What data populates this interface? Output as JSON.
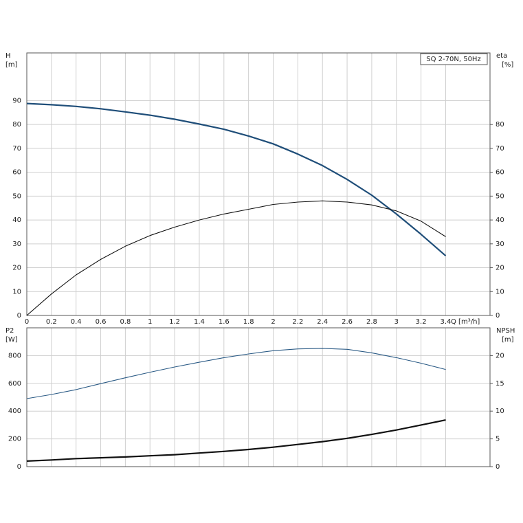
{
  "chart_data": [
    {
      "type": "line",
      "title": "SQ 2-70N, 50Hz",
      "ylabel": "H",
      "yunit": "[m]",
      "y2label": "eta",
      "y2unit": "[%]",
      "xlabel": "Q [m³/h]",
      "xlim": [
        0,
        3.76
      ],
      "xticks": [
        0,
        0.2,
        0.4,
        0.6,
        0.8,
        1.0,
        1.2,
        1.4,
        1.6,
        1.8,
        2.0,
        2.2,
        2.4,
        2.6,
        2.8,
        3.0,
        3.2,
        3.4
      ],
      "ylim": [
        0,
        110
      ],
      "yticks": [
        0,
        10,
        20,
        30,
        40,
        50,
        60,
        70,
        80,
        90
      ],
      "y2lim": [
        0,
        110
      ],
      "y2ticks": [
        0,
        10,
        20,
        30,
        40,
        50,
        60,
        70,
        80
      ],
      "show_xtick_labels": true,
      "grid": true,
      "x": [
        0,
        0.2,
        0.4,
        0.6,
        0.8,
        1.0,
        1.2,
        1.4,
        1.6,
        1.8,
        2.0,
        2.2,
        2.4,
        2.6,
        2.8,
        3.0,
        3.2,
        3.4
      ],
      "series": [
        {
          "name": "H",
          "color": "#1f4e79",
          "width": 2.2,
          "axis": "y",
          "values": [
            88.8,
            88.3,
            87.6,
            86.6,
            85.3,
            83.9,
            82.2,
            80.2,
            78,
            75.2,
            71.9,
            67.6,
            62.8,
            57,
            50.4,
            42.5,
            34,
            25
          ]
        },
        {
          "name": "eta",
          "color": "#111111",
          "width": 1.1,
          "axis": "y2",
          "values": [
            0,
            9,
            17,
            23.5,
            29,
            33.5,
            37,
            40,
            42.5,
            44.5,
            46.5,
            47.5,
            48,
            47.5,
            46.3,
            43.8,
            39.5,
            33
          ]
        }
      ]
    },
    {
      "type": "line",
      "ylabel": "P2",
      "yunit": "[W]",
      "y2label": "NPSH",
      "y2unit": "[m]",
      "xlim": [
        0,
        3.76
      ],
      "xticks": [
        0,
        0.2,
        0.4,
        0.6,
        0.8,
        1.0,
        1.2,
        1.4,
        1.6,
        1.8,
        2.0,
        2.2,
        2.4,
        2.6,
        2.8,
        3.0,
        3.2,
        3.4
      ],
      "ylim": [
        0,
        1000
      ],
      "yticks": [
        0,
        200,
        400,
        600,
        800
      ],
      "y2lim": [
        0,
        25
      ],
      "y2ticks": [
        0,
        5,
        10,
        15,
        20
      ],
      "show_xtick_labels": false,
      "grid": true,
      "x": [
        0,
        0.2,
        0.4,
        0.6,
        0.8,
        1.0,
        1.2,
        1.4,
        1.6,
        1.8,
        2.0,
        2.2,
        2.4,
        2.6,
        2.8,
        3.0,
        3.2,
        3.4
      ],
      "series": [
        {
          "name": "P2",
          "color": "#2a5a85",
          "width": 1.1,
          "axis": "y",
          "values": [
            490,
            520,
            555,
            598,
            640,
            680,
            718,
            752,
            785,
            812,
            835,
            848,
            852,
            845,
            820,
            785,
            745,
            700
          ]
        },
        {
          "name": "NPSH",
          "color": "#111111",
          "width": 2.2,
          "axis": "y2",
          "values": [
            1.0,
            1.2,
            1.45,
            1.6,
            1.75,
            1.95,
            2.15,
            2.45,
            2.75,
            3.1,
            3.5,
            4.0,
            4.5,
            5.1,
            5.8,
            6.6,
            7.5,
            8.4
          ]
        }
      ]
    }
  ]
}
